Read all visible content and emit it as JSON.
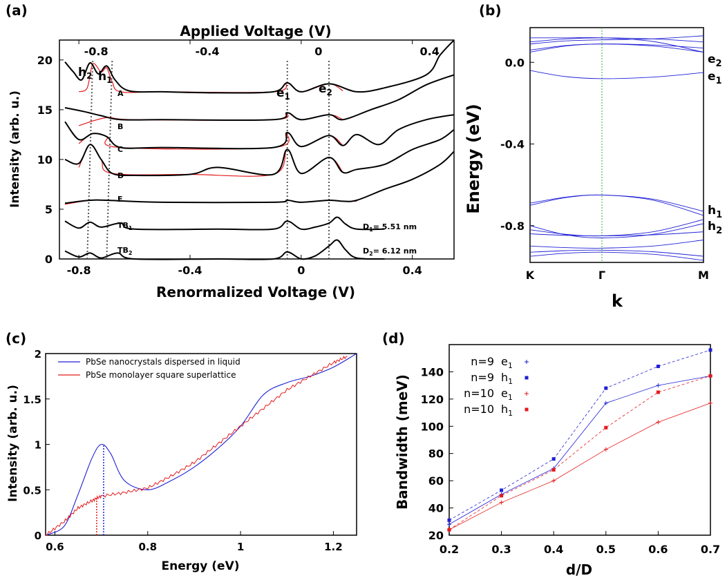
{
  "panels": {
    "a": {
      "label": "(a)",
      "top_axis_title": "Applied Voltage (V)",
      "bottom_axis_title": "Renormalized Voltage (V)",
      "y_axis_title": "Intensity (arb. u.)",
      "top_ticks": [
        "-0.8",
        "-0.4",
        "0",
        "0.4"
      ],
      "bottom_ticks": [
        "-0.8",
        "-0.4",
        "0",
        "0.4"
      ],
      "y_ticks": [
        "0",
        "5",
        "10",
        "15",
        "20"
      ],
      "peak_labels": {
        "h2": "h",
        "h2_sub": "2",
        "h1": "h",
        "h1_sub": "1",
        "e1": "e",
        "e1_sub": "1",
        "e2": "e",
        "e2_sub": "2"
      },
      "curve_labels": {
        "A": "A",
        "B": "B",
        "C": "C",
        "D": "D",
        "E": "E",
        "TB1": "TB",
        "TB1_sub": "1",
        "TB2": "TB",
        "TB2_sub": "2"
      },
      "d1_prefix": "D",
      "d1_sub": "1",
      "d1_value": "= 5.51 nm",
      "d2_prefix": "D",
      "d2_sub": "2",
      "d2_value": "= 6.12 nm"
    },
    "b": {
      "label": "(b)",
      "y_axis_title": "Energy (eV)",
      "x_axis_title": "k",
      "x_ticks": [
        "K",
        "Γ",
        "M"
      ],
      "y_ticks": [
        "0.0",
        "-0.4",
        "-0.8"
      ],
      "band_labels": {
        "e2": "e",
        "e2_sub": "2",
        "e1": "e",
        "e1_sub": "1",
        "h1": "h",
        "h1_sub": "1",
        "h2": "h",
        "h2_sub": "2"
      }
    },
    "c": {
      "label": "(c)",
      "y_axis_title": "Intensity (arb. u.)",
      "x_axis_title": "Energy (eV)",
      "x_ticks": [
        "0.6",
        "0.8",
        "1",
        "1.2"
      ],
      "y_ticks": [
        "0",
        "0.5",
        "1",
        "1.5",
        "2"
      ],
      "legend": [
        "PbSe nanocrystals dispersed in liquid",
        "PbSe monolayer square superlattice"
      ]
    },
    "d": {
      "label": "(d)",
      "y_axis_title": "Bandwidth (meV)",
      "x_axis_title": "d/D",
      "x_ticks": [
        "0.2",
        "0.3",
        "0.4",
        "0.5",
        "0.6",
        "0.7"
      ],
      "y_ticks": [
        "20",
        "40",
        "60",
        "80",
        "100",
        "120",
        "140"
      ],
      "legend": [
        {
          "prefix": "n=9",
          "sym": "e",
          "sub": "1"
        },
        {
          "prefix": "n=9",
          "sym": "h",
          "sub": "1"
        },
        {
          "prefix": "n=10",
          "sym": "e",
          "sub": "1"
        },
        {
          "prefix": "n=10",
          "sym": "h",
          "sub": "1"
        }
      ]
    }
  },
  "colors": {
    "blue": "#1f1fd6",
    "red": "#e41a1c",
    "black": "#000000",
    "green": "#33aa33"
  },
  "chart_data": [
    {
      "type": "line",
      "panel": "a",
      "xlabel": "Renormalized Voltage (V)",
      "ylabel": "Intensity (arb. u.)",
      "xlim": [
        -0.87,
        0.55
      ],
      "ylim": [
        0,
        22
      ],
      "series": [
        {
          "name": "A",
          "x": [
            -0.85,
            -0.82,
            -0.79,
            -0.76,
            -0.73,
            -0.7,
            -0.67,
            -0.62,
            -0.5,
            -0.3,
            -0.1,
            -0.05,
            0.0,
            0.1,
            0.2,
            0.3,
            0.45,
            0.5,
            0.55
          ],
          "y": [
            19.8,
            18.8,
            18.0,
            19.7,
            18.6,
            19.4,
            18.0,
            16.9,
            16.8,
            16.7,
            16.8,
            17.7,
            16.8,
            17.6,
            16.8,
            17.2,
            18.5,
            20.5,
            22.0
          ]
        },
        {
          "name": "B",
          "x": [
            -0.85,
            -0.78,
            -0.72,
            -0.65,
            -0.5,
            -0.1,
            -0.05,
            0.0,
            0.1,
            0.15,
            0.25,
            0.35,
            0.45,
            0.55
          ],
          "y": [
            15.2,
            14.8,
            14.4,
            14.0,
            14.0,
            14.0,
            14.7,
            14.0,
            14.5,
            14.0,
            15.0,
            16.0,
            17.5,
            18.5
          ]
        },
        {
          "name": "C",
          "x": [
            -0.85,
            -0.8,
            -0.75,
            -0.7,
            -0.65,
            -0.5,
            -0.1,
            -0.05,
            0.0,
            0.1,
            0.15,
            0.2,
            0.28,
            0.35,
            0.45,
            0.55
          ],
          "y": [
            13.8,
            12.0,
            12.6,
            12.3,
            11.2,
            11.2,
            11.2,
            12.7,
            11.3,
            12.4,
            11.4,
            12.5,
            11.5,
            13.0,
            14.0,
            14.5
          ]
        },
        {
          "name": "D",
          "x": [
            -0.85,
            -0.8,
            -0.76,
            -0.72,
            -0.68,
            -0.6,
            -0.4,
            -0.3,
            -0.1,
            -0.05,
            0.0,
            0.1,
            0.15,
            0.2,
            0.3,
            0.4,
            0.5,
            0.55
          ],
          "y": [
            10.0,
            9.6,
            11.5,
            10.0,
            8.6,
            8.4,
            8.5,
            9.2,
            8.5,
            11.0,
            8.6,
            10.2,
            8.7,
            9.0,
            9.5,
            11.0,
            12.0,
            13.0
          ]
        },
        {
          "name": "E",
          "x": [
            -0.85,
            -0.76,
            -0.7,
            -0.5,
            -0.1,
            -0.05,
            0.0,
            0.1,
            0.15,
            0.2,
            0.3,
            0.4,
            0.5,
            0.55
          ],
          "y": [
            5.6,
            5.9,
            5.9,
            5.7,
            5.7,
            5.9,
            5.7,
            5.9,
            5.8,
            5.9,
            7.0,
            8.0,
            9.5,
            10.8
          ]
        },
        {
          "name": "TB1",
          "x": [
            -0.85,
            -0.8,
            -0.76,
            -0.72,
            -0.65,
            -0.6,
            -0.3,
            -0.1,
            -0.05,
            0.0,
            0.05,
            0.1,
            0.13,
            0.16,
            0.2,
            0.3
          ],
          "y": [
            3.8,
            3.1,
            3.7,
            3.2,
            3.6,
            3.0,
            3.0,
            3.0,
            3.8,
            3.0,
            3.2,
            3.6,
            4.2,
            3.5,
            3.0,
            3.0
          ]
        },
        {
          "name": "TB2",
          "x": [
            -0.85,
            -0.8,
            -0.76,
            -0.72,
            -0.66,
            -0.6,
            -0.3,
            -0.1,
            -0.05,
            0.0,
            0.05,
            0.1,
            0.13,
            0.16,
            0.2,
            0.3
          ],
          "y": [
            0.8,
            0.2,
            0.6,
            0.1,
            0.6,
            0.0,
            0.0,
            0.0,
            0.7,
            0.0,
            0.3,
            1.3,
            1.9,
            0.9,
            0.1,
            0.0
          ]
        }
      ],
      "fits": [
        {
          "x": [
            -0.8,
            -0.77,
            -0.75,
            -0.72,
            -0.7,
            -0.68,
            -0.65,
            -0.5,
            -0.1,
            -0.05,
            0.0,
            0.1,
            0.15
          ],
          "y": [
            16.8,
            17.2,
            19.6,
            18.8,
            19.2,
            17.8,
            16.8,
            16.8,
            16.8,
            17.7,
            16.8,
            17.6,
            16.9
          ]
        },
        {
          "x": [
            -0.8,
            -0.7,
            -0.6,
            -0.1,
            -0.05,
            0.0,
            0.1,
            0.15
          ],
          "y": [
            13.4,
            14.2,
            14.0,
            14.0,
            14.7,
            14.0,
            14.5,
            14.0
          ]
        },
        {
          "x": [
            -0.8,
            -0.75,
            -0.7,
            -0.65,
            -0.1,
            -0.05,
            0.0,
            0.1,
            0.15
          ],
          "y": [
            11.6,
            12.6,
            12.3,
            11.2,
            11.2,
            12.7,
            11.3,
            12.4,
            11.4
          ]
        },
        {
          "x": [
            -0.8,
            -0.76,
            -0.72,
            -0.68,
            -0.4,
            -0.1,
            -0.05,
            0.0,
            0.1,
            0.15
          ],
          "y": [
            9.2,
            11.5,
            10.0,
            8.6,
            8.5,
            8.5,
            11.0,
            8.6,
            10.2,
            8.7
          ]
        },
        {
          "x": [
            -0.85,
            -0.76,
            -0.7,
            -0.5,
            -0.1,
            -0.05,
            0.0,
            0.1,
            0.15,
            0.2
          ],
          "y": [
            5.5,
            5.9,
            5.9,
            5.7,
            5.7,
            5.9,
            5.7,
            5.9,
            5.8,
            5.8
          ]
        }
      ],
      "guides_x": [
        -0.77,
        -0.7,
        -0.05,
        0.1
      ]
    },
    {
      "type": "line",
      "panel": "b",
      "xlabel": "k",
      "ylabel": "Energy (eV)",
      "x_points": [
        "K",
        "Γ",
        "M"
      ],
      "ylim": [
        -0.98,
        0.17
      ],
      "bands": [
        {
          "y": [
            0.12,
            0.12,
            0.05
          ]
        },
        {
          "y": [
            0.1,
            0.12,
            0.1
          ]
        },
        {
          "y": [
            0.09,
            0.11,
            0.13
          ]
        },
        {
          "y": [
            0.06,
            0.09,
            0.07
          ]
        },
        {
          "y": [
            0.05,
            0.09,
            0.05
          ]
        },
        {
          "y": [
            -0.04,
            -0.08,
            -0.05
          ]
        },
        {
          "y": [
            -0.7,
            -0.65,
            -0.75
          ]
        },
        {
          "y": [
            -0.69,
            -0.65,
            -0.73
          ]
        },
        {
          "y": [
            -0.8,
            -0.86,
            -0.79
          ]
        },
        {
          "y": [
            -0.82,
            -0.85,
            -0.77
          ]
        },
        {
          "y": [
            -0.84,
            -0.85,
            -0.83
          ]
        },
        {
          "y": [
            -0.9,
            -0.91,
            -0.87
          ]
        },
        {
          "y": [
            -0.93,
            -0.92,
            -0.95
          ]
        },
        {
          "y": [
            -0.95,
            -0.93,
            -0.97
          ]
        }
      ]
    },
    {
      "type": "line",
      "panel": "c",
      "xlabel": "Energy (eV)",
      "ylabel": "Intensity (arb. u.)",
      "xlim": [
        0.58,
        1.25
      ],
      "ylim": [
        0,
        2
      ],
      "series": [
        {
          "name": "PbSe nanocrystals dispersed in liquid",
          "x": [
            0.58,
            0.62,
            0.65,
            0.68,
            0.7,
            0.72,
            0.75,
            0.8,
            0.85,
            0.9,
            0.95,
            1.0,
            1.05,
            1.1,
            1.15,
            1.2,
            1.25
          ],
          "y": [
            0.0,
            0.1,
            0.45,
            0.85,
            1.0,
            0.9,
            0.6,
            0.5,
            0.6,
            0.75,
            0.95,
            1.2,
            1.55,
            1.68,
            1.75,
            1.85,
            2.0
          ]
        },
        {
          "name": "PbSe monolayer square superlattice",
          "x": [
            0.58,
            0.62,
            0.65,
            0.68,
            0.7,
            0.75,
            0.8,
            0.85,
            0.9,
            0.95,
            1.0,
            1.05,
            1.1,
            1.15,
            1.2,
            1.23
          ],
          "y": [
            0.0,
            0.15,
            0.3,
            0.38,
            0.43,
            0.47,
            0.52,
            0.65,
            0.8,
            1.0,
            1.2,
            1.4,
            1.6,
            1.75,
            1.9,
            1.97
          ]
        }
      ],
      "markers_x": [
        0.69,
        0.705
      ]
    },
    {
      "type": "line",
      "panel": "d",
      "xlabel": "d/D",
      "ylabel": "Bandwidth (meV)",
      "xlim": [
        0.2,
        0.7
      ],
      "ylim": [
        20,
        160
      ],
      "x": [
        0.2,
        0.3,
        0.4,
        0.5,
        0.6,
        0.7
      ],
      "series": [
        {
          "name": "n=9 e1",
          "values": [
            28,
            50,
            69,
            117,
            130,
            137
          ]
        },
        {
          "name": "n=9 h1",
          "values": [
            31,
            53,
            76,
            128,
            144,
            156
          ]
        },
        {
          "name": "n=10 e1",
          "values": [
            24,
            44,
            60,
            83,
            103,
            117
          ]
        },
        {
          "name": "n=10 h1",
          "values": [
            24,
            49,
            68,
            99,
            125,
            137
          ]
        }
      ]
    }
  ]
}
